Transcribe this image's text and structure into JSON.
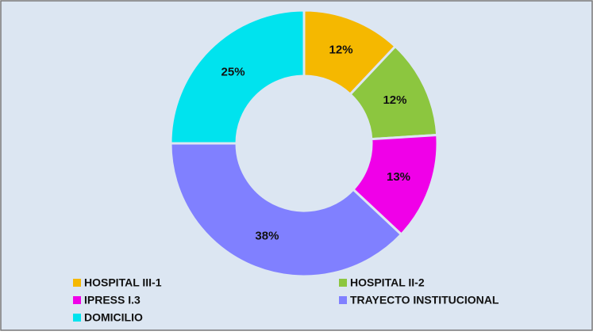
{
  "chart_data": {
    "type": "pie",
    "categories": [
      "HOSPITAL III-1",
      "HOSPITAL II-2",
      "IPRESS I.3",
      "TRAYECTO INSTITUCIONAL",
      "DOMICILIO"
    ],
    "values": [
      12,
      12,
      13,
      38,
      25
    ],
    "value_labels": [
      "12%",
      "12%",
      "13%",
      "38%",
      "25%"
    ],
    "colors": [
      "#f5b800",
      "#8cc63f",
      "#f000e8",
      "#8080ff",
      "#00e3ee"
    ],
    "donut": true
  }
}
